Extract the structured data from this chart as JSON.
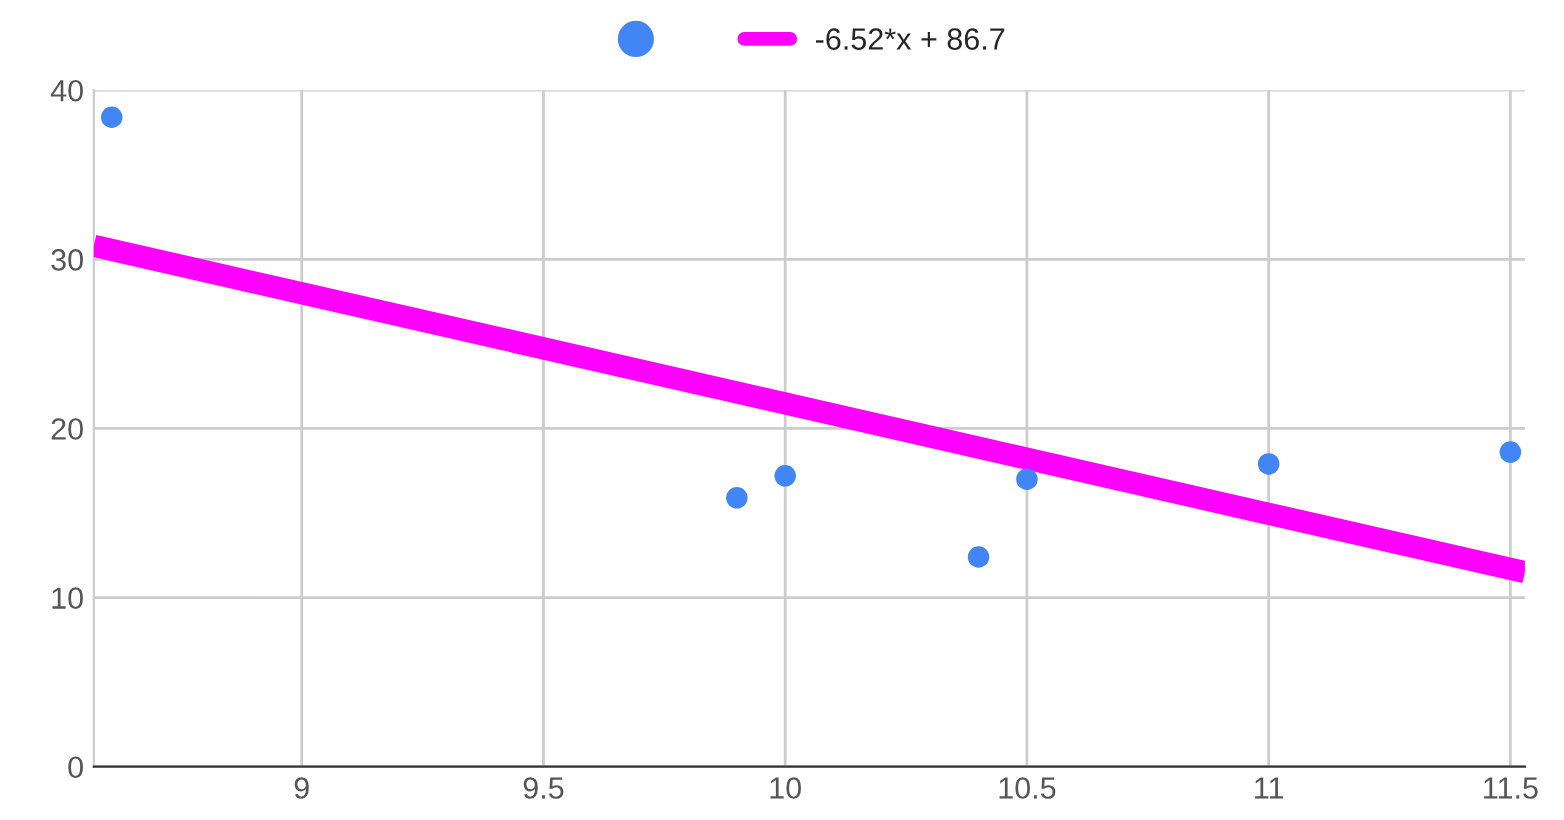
{
  "chart_data": {
    "type": "scatter",
    "series": [
      {
        "marker": "circle",
        "color": "#4285f4",
        "x": [
          8.607,
          9.9,
          10.0,
          10.4,
          10.5,
          11.0,
          11.5
        ],
        "values": [
          38.4,
          15.9,
          17.2,
          12.4,
          17.0,
          17.9,
          18.6
        ]
      },
      {
        "type": "line",
        "name": "-6.52*x + 86.7",
        "color": "#ff00ff",
        "x": [
          8.57,
          11.53
        ],
        "values": [
          30.8,
          11.5
        ]
      }
    ],
    "xlim": [
      8.57,
      11.53
    ],
    "xticks": [
      9,
      9.5,
      10,
      10.5,
      11,
      11.5
    ],
    "ylim": [
      0,
      40
    ],
    "yticks": [
      0,
      10,
      20,
      30,
      40
    ],
    "grid": true,
    "legend": "top"
  }
}
